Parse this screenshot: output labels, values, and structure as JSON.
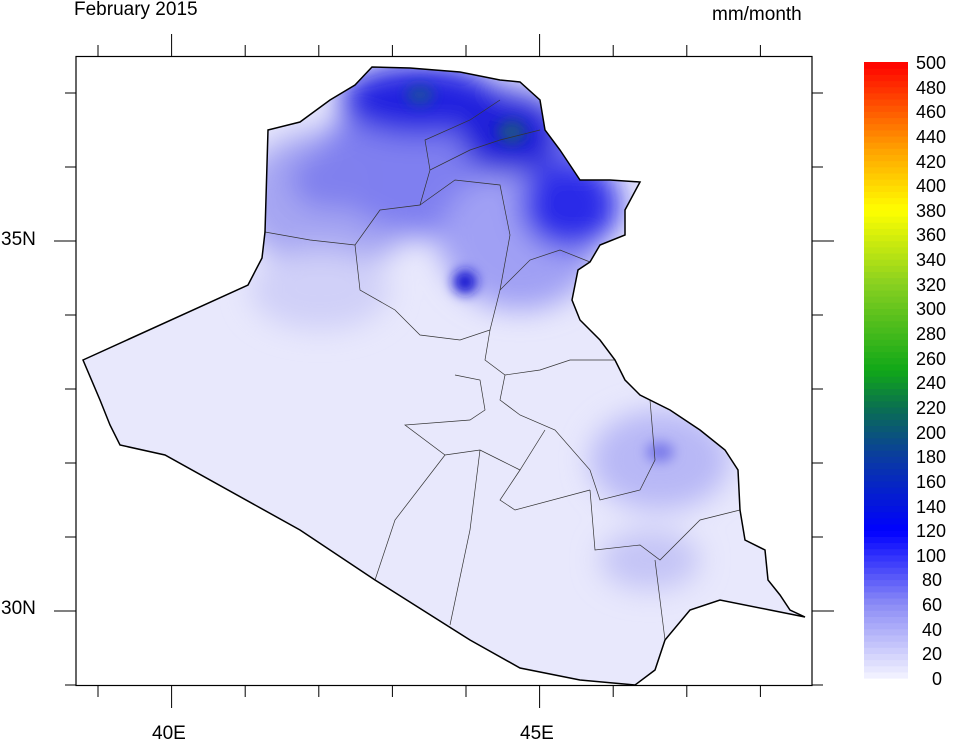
{
  "title": "February 2015",
  "units": "mm/month",
  "axes": {
    "x_labels": [
      "40E",
      "45E"
    ],
    "y_labels": [
      "35N",
      "30N"
    ]
  },
  "map": {
    "region": "Iraq",
    "variable": "precipitation",
    "background_color": "#e8e8fc",
    "outline_color": "#000000"
  },
  "colorbar": {
    "labels": [
      "0",
      "20",
      "40",
      "60",
      "80",
      "100",
      "120",
      "140",
      "160",
      "180",
      "200",
      "220",
      "240",
      "260",
      "280",
      "300",
      "320",
      "340",
      "360",
      "380",
      "400",
      "420",
      "440",
      "460",
      "480",
      "500"
    ],
    "stops": [
      {
        "value": 0,
        "color": "#f4f4ff"
      },
      {
        "value": 60,
        "color": "#8c8cf6"
      },
      {
        "value": 120,
        "color": "#0000ff"
      },
      {
        "value": 180,
        "color": "#0a3ca0"
      },
      {
        "value": 220,
        "color": "#0a7050"
      },
      {
        "value": 250,
        "color": "#10a818"
      },
      {
        "value": 320,
        "color": "#88d020"
      },
      {
        "value": 380,
        "color": "#ffff00"
      },
      {
        "value": 430,
        "color": "#ffa000"
      },
      {
        "value": 500,
        "color": "#ff0000"
      }
    ]
  }
}
